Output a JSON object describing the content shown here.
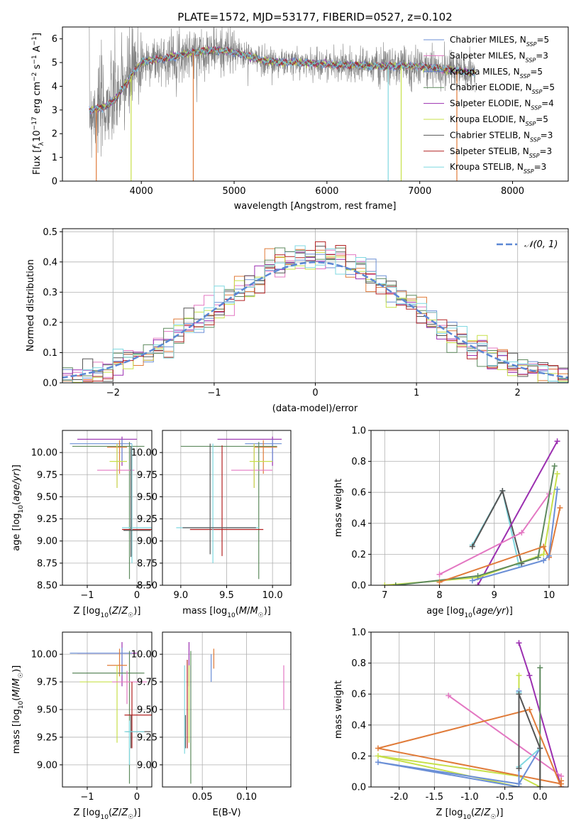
{
  "chart_data": [
    {
      "type": "line",
      "title": "PLATE=1572, MJD=53177, FIBERID=0527, z=0.102",
      "xlabel": "wavelength [Angstrom, rest frame]",
      "ylabel": "Flux [f_λ 10^-17 erg cm^-2 s^-1 A^-1]",
      "xlim": [
        3150,
        8600
      ],
      "ylim": [
        0,
        6.5
      ],
      "xticks": [
        4000,
        5000,
        6000,
        7000,
        8000
      ],
      "yticks": [
        0,
        1,
        2,
        3,
        4,
        5,
        6
      ],
      "legend_position": "top-right",
      "series": [
        {
          "name": "Chabrier MILES, N_SSP=5",
          "color": "#6b8fd6"
        },
        {
          "name": "Salpeter MILES, N_SSP=3",
          "color": "#e377c2"
        },
        {
          "name": "Kroupa MILES, N_SSP=5",
          "color": "#5b7fcf"
        },
        {
          "name": "Chabrier ELODIE, N_SSP=5",
          "color": "#5e8a5e"
        },
        {
          "name": "Salpeter ELODIE, N_SSP=4",
          "color": "#9b2fb0"
        },
        {
          "name": "Kroupa ELODIE, N_SSP=5",
          "color": "#c7e04a"
        },
        {
          "name": "Chabrier STELIB, N_SSP=3",
          "color": "#555555"
        },
        {
          "name": "Salpeter STELIB, N_SSP=3",
          "color": "#b22222"
        },
        {
          "name": "Kroupa STELIB, N_SSP=3",
          "color": "#7fd8e0"
        }
      ],
      "continuum": {
        "x": [
          3450,
          3600,
          3700,
          3800,
          3900,
          4000,
          4100,
          4300,
          4500,
          4700,
          4900,
          5100,
          5300,
          5500,
          5700,
          5900,
          6100,
          6300,
          6500,
          6700,
          6900,
          7100,
          7300,
          7500,
          7600
        ],
        "y": [
          3.0,
          3.1,
          3.4,
          3.9,
          4.5,
          5.0,
          5.1,
          5.2,
          5.4,
          5.5,
          5.5,
          5.35,
          5.1,
          5.0,
          5.0,
          4.95,
          4.9,
          4.9,
          4.85,
          4.85,
          4.85,
          4.8,
          4.7,
          4.6,
          4.55
        ]
      },
      "dropouts": [
        {
          "x": 3515,
          "color": "#e07b39"
        },
        {
          "x": 3890,
          "color": "#c7e04a"
        },
        {
          "x": 4560,
          "color": "#e07b39"
        },
        {
          "x": 6660,
          "color": "#7fd8e0"
        },
        {
          "x": 6800,
          "color": "#c7e04a"
        },
        {
          "x": 7400,
          "color": "#e07b39"
        }
      ]
    },
    {
      "type": "histogram",
      "xlabel": "(data-model)/error",
      "ylabel": "Normed distribution",
      "xlim": [
        -2.5,
        2.5
      ],
      "ylim": [
        0,
        0.51
      ],
      "xticks": [
        -2,
        -1,
        0,
        1,
        2
      ],
      "yticks": [
        0.0,
        0.1,
        0.2,
        0.3,
        0.4,
        0.5
      ],
      "legend": "𝒩(0, 1)",
      "legend_position": "top-right",
      "bin_width": 0.1,
      "reference_curve": {
        "name": "𝒩(0, 1)",
        "color": "#5b87d4",
        "mean": 0,
        "sigma": 1
      },
      "series_colors": [
        "#6b8fd6",
        "#e377c2",
        "#e07b39",
        "#5e8a5e",
        "#9b2fb0",
        "#c7e04a",
        "#555555",
        "#b22222",
        "#7fd8e0"
      ]
    },
    {
      "type": "errorbar",
      "xlabel": "Z [log10(Z/Z☉)]",
      "ylabel": "age  [log10(age/yr)]",
      "xlim": [
        -1.5,
        0.3
      ],
      "ylim": [
        8.5,
        10.25
      ],
      "xticks": [
        -1,
        0
      ],
      "yticks": [
        8.5,
        8.75,
        9.0,
        9.25,
        9.5,
        9.75,
        10.0
      ],
      "points": [
        {
          "x": -0.3,
          "y": 10.15,
          "xerr": [
            0.9,
            0.3
          ],
          "yerr": [
            0.3,
            0.03
          ],
          "color": "#9b2fb0"
        },
        {
          "x": -0.3,
          "y": 10.1,
          "xerr": [
            1.05,
            0.2
          ],
          "yerr": [
            0.2,
            0.05
          ],
          "color": "#6b8fd6"
        },
        {
          "x": -0.35,
          "y": 10.06,
          "xerr": [
            0.25,
            0.15
          ],
          "yerr": [
            0.3,
            0.08
          ],
          "color": "#e07b39"
        },
        {
          "x": -0.15,
          "y": 10.07,
          "xerr": [
            1.15,
            0.3
          ],
          "yerr": [
            1.5,
            0.05
          ],
          "color": "#5e8a5e"
        },
        {
          "x": -0.4,
          "y": 9.8,
          "xerr": [
            0.4,
            0.35
          ],
          "yerr": [
            0.2,
            0.3
          ],
          "color": "#e377c2"
        },
        {
          "x": -0.4,
          "y": 9.9,
          "xerr": [
            0.15,
            0.2
          ],
          "yerr": [
            0.3,
            0.2
          ],
          "color": "#c7e04a"
        },
        {
          "x": -0.1,
          "y": 9.13,
          "xerr": [
            0.2,
            0.4
          ],
          "yerr": [
            0.3,
            0.95
          ],
          "color": "#b22222"
        },
        {
          "x": -0.1,
          "y": 9.15,
          "xerr": [
            0.2,
            0.4
          ],
          "yerr": [
            0.4,
            0.95
          ],
          "color": "#7fd8e0"
        },
        {
          "x": -0.12,
          "y": 9.12,
          "xerr": [
            0.15,
            0.4
          ],
          "yerr": [
            0.3,
            0.95
          ],
          "color": "#555555"
        }
      ]
    },
    {
      "type": "errorbar",
      "xlabel": "mass [log10(M/M☉)]",
      "xlim": [
        8.8,
        10.2
      ],
      "ylim": [
        8.5,
        10.25
      ],
      "xticks": [
        9.0,
        9.5,
        10.0
      ],
      "yticks": [
        8.5,
        8.75,
        9.0,
        9.25,
        9.5,
        9.75,
        10.0
      ],
      "points": [
        {
          "x": 10.0,
          "y": 10.15,
          "xerr": [
            0.6,
            0.1
          ],
          "yerr": [
            0.3,
            0.03
          ],
          "color": "#9b2fb0"
        },
        {
          "x": 10.0,
          "y": 10.1,
          "xerr": [
            0.3,
            0.1
          ],
          "yerr": [
            0.2,
            0.05
          ],
          "color": "#6b8fd6"
        },
        {
          "x": 9.9,
          "y": 10.06,
          "xerr": [
            0.1,
            0.15
          ],
          "yerr": [
            0.3,
            0.08
          ],
          "color": "#e07b39"
        },
        {
          "x": 9.85,
          "y": 10.07,
          "xerr": [
            0.85,
            0.2
          ],
          "yerr": [
            1.5,
            0.05
          ],
          "color": "#5e8a5e"
        },
        {
          "x": 9.8,
          "y": 9.8,
          "xerr": [
            0.25,
            0.2
          ],
          "yerr": [
            0.2,
            0.3
          ],
          "color": "#e377c2"
        },
        {
          "x": 9.8,
          "y": 9.9,
          "xerr": [
            0.05,
            0.2
          ],
          "yerr": [
            0.3,
            0.2
          ],
          "color": "#c7e04a"
        },
        {
          "x": 9.45,
          "y": 9.13,
          "xerr": [
            0.35,
            0.45
          ],
          "yerr": [
            0.3,
            0.95
          ],
          "color": "#b22222"
        },
        {
          "x": 9.35,
          "y": 9.15,
          "xerr": [
            0.4,
            0.5
          ],
          "yerr": [
            0.4,
            0.95
          ],
          "color": "#7fd8e0"
        },
        {
          "x": 9.32,
          "y": 9.15,
          "xerr": [
            0.3,
            0.5
          ],
          "yerr": [
            0.3,
            0.95
          ],
          "color": "#555555"
        }
      ]
    },
    {
      "type": "line",
      "xlabel": "age  [log10(age/yr)]",
      "ylabel": "mass weight",
      "xlim": [
        6.75,
        10.35
      ],
      "ylim": [
        0,
        1.0
      ],
      "xticks": [
        7,
        8,
        9,
        10
      ],
      "yticks": [
        0.0,
        0.2,
        0.4,
        0.6,
        0.8,
        1.0
      ],
      "series": [
        {
          "color": "#7fd8e0",
          "x": [
            8.6,
            9.15,
            9.45
          ],
          "y": [
            0.26,
            0.61,
            0.13
          ]
        },
        {
          "color": "#555555",
          "x": [
            8.6,
            9.15,
            9.5
          ],
          "y": [
            0.25,
            0.61,
            0.14
          ]
        },
        {
          "color": "#9b2fb0",
          "x": [
            8.7,
            10.15
          ],
          "y": [
            0.0,
            0.93
          ]
        },
        {
          "color": "#c7e04a",
          "x": [
            7.0,
            8.7,
            9.9,
            10.15
          ],
          "y": [
            0.0,
            0.05,
            0.2,
            0.72
          ]
        },
        {
          "color": "#e377c2",
          "x": [
            8.0,
            9.5,
            10.0
          ],
          "y": [
            0.07,
            0.34,
            0.59
          ]
        },
        {
          "color": "#5e8a5e",
          "x": [
            7.2,
            8.7,
            9.8,
            10.1
          ],
          "y": [
            0.0,
            0.06,
            0.18,
            0.77
          ]
        },
        {
          "color": "#e07b39",
          "x": [
            8.0,
            9.9,
            10.0,
            10.2
          ],
          "y": [
            0.02,
            0.25,
            0.18,
            0.5
          ]
        },
        {
          "color": "#6b8fd6",
          "x": [
            8.6,
            9.9,
            10.0,
            10.15
          ],
          "y": [
            0.03,
            0.16,
            0.19,
            0.62
          ]
        }
      ]
    },
    {
      "type": "errorbar",
      "xlabel": "Z [log10(Z/Z☉)]",
      "ylabel": "mass [log10(M/M☉)]",
      "xlim": [
        -1.5,
        0.3
      ],
      "ylim": [
        8.8,
        10.2
      ],
      "xticks": [
        -1,
        0
      ],
      "yticks": [
        9.0,
        9.25,
        9.5,
        9.75,
        10.0
      ],
      "points": [
        {
          "x": -0.3,
          "y": 10.01,
          "xerr": [
            0.9,
            0.3
          ],
          "yerr": [
            0.3,
            0.1
          ],
          "color": "#9b2fb0"
        },
        {
          "x": -0.3,
          "y": 10.01,
          "xerr": [
            1.05,
            0.2
          ],
          "yerr": [
            0.2,
            0.05
          ],
          "color": "#6b8fd6"
        },
        {
          "x": -0.35,
          "y": 9.9,
          "xerr": [
            0.25,
            0.15
          ],
          "yerr": [
            0.1,
            0.15
          ],
          "color": "#e07b39"
        },
        {
          "x": -0.15,
          "y": 9.83,
          "xerr": [
            1.15,
            0.3
          ],
          "yerr": [
            1.0,
            0.2
          ],
          "color": "#5e8a5e"
        },
        {
          "x": -0.4,
          "y": 9.75,
          "xerr": [
            0.75,
            0.35
          ],
          "yerr": [
            0.55,
            0.15
          ],
          "color": "#c7e04a"
        },
        {
          "x": -0.2,
          "y": 9.75,
          "xerr": [
            0.3,
            0.4
          ],
          "yerr": [
            0.2,
            0.1
          ],
          "color": "#e377c2"
        },
        {
          "x": -0.1,
          "y": 9.45,
          "xerr": [
            0.15,
            0.4
          ],
          "yerr": [
            0.3,
            0.3
          ],
          "color": "#b22222"
        },
        {
          "x": -0.12,
          "y": 9.3,
          "xerr": [
            0.1,
            0.4
          ],
          "yerr": [
            0.15,
            0.15
          ],
          "color": "#555555"
        },
        {
          "x": -0.15,
          "y": 9.3,
          "xerr": [
            0.1,
            0.3
          ],
          "yerr": [
            0.3,
            0.1
          ],
          "color": "#7fd8e0"
        }
      ]
    },
    {
      "type": "errorbar",
      "xlabel": "E(B-V)",
      "xlim": [
        0.005,
        0.15
      ],
      "ylim": [
        8.8,
        10.2
      ],
      "xticks": [
        0.05,
        0.1
      ],
      "xtick_labels": [
        "0.05",
        "0.10"
      ],
      "yticks": [
        9.0,
        9.25,
        9.5,
        9.75,
        10.0
      ],
      "points": [
        {
          "x": 0.035,
          "y": 10.01,
          "yerr": [
            0.3,
            0.1
          ],
          "color": "#9b2fb0"
        },
        {
          "x": 0.06,
          "y": 9.9,
          "yerr": [
            0.15,
            0.1
          ],
          "color": "#6b8fd6"
        },
        {
          "x": 0.063,
          "y": 9.97,
          "yerr": [
            0.1,
            0.08
          ],
          "color": "#e07b39"
        },
        {
          "x": 0.037,
          "y": 9.83,
          "yerr": [
            1.0,
            0.2
          ],
          "color": "#5e8a5e"
        },
        {
          "x": 0.035,
          "y": 9.75,
          "yerr": [
            0.55,
            0.15
          ],
          "color": "#c7e04a"
        },
        {
          "x": 0.142,
          "y": 9.75,
          "yerr": [
            0.25,
            0.15
          ],
          "color": "#e377c2"
        },
        {
          "x": 0.033,
          "y": 9.45,
          "yerr": [
            0.3,
            0.5
          ],
          "color": "#b22222"
        },
        {
          "x": 0.031,
          "y": 9.3,
          "yerr": [
            0.15,
            0.15
          ],
          "color": "#555555"
        },
        {
          "x": 0.03,
          "y": 9.5,
          "yerr": [
            0.4,
            0.4
          ],
          "color": "#7fd8e0"
        }
      ]
    },
    {
      "type": "line",
      "xlabel": "Z [log10(Z/Z☉)]",
      "ylabel": "mass weight",
      "xlim": [
        -2.4,
        0.4
      ],
      "ylim": [
        0,
        1.0
      ],
      "xticks": [
        -2.0,
        -1.5,
        -1.0,
        -0.5,
        0.0
      ],
      "yticks": [
        0.0,
        0.2,
        0.4,
        0.6,
        0.8,
        1.0
      ],
      "series": [
        {
          "color": "#9b2fb0",
          "x": [
            -0.3,
            -0.15,
            0.3
          ],
          "y": [
            0.93,
            0.72,
            0.0
          ]
        },
        {
          "color": "#5e8a5e",
          "x": [
            0.0,
            0.0
          ],
          "y": [
            0.0,
            0.77
          ]
        },
        {
          "color": "#c7e04a",
          "x": [
            -0.3,
            -0.3,
            -2.3,
            -0.3,
            0.0
          ],
          "y": [
            0.72,
            0.0,
            0.2,
            0.07,
            0.0
          ]
        },
        {
          "color": "#e377c2",
          "x": [
            -1.3,
            0.3
          ],
          "y": [
            0.59,
            0.07
          ]
        },
        {
          "color": "#e07b39",
          "x": [
            0.3,
            -2.3,
            -0.15,
            0.3,
            0.3
          ],
          "y": [
            0.02,
            0.25,
            0.5,
            0.0,
            0.04
          ]
        },
        {
          "color": "#6b8fd6",
          "x": [
            -0.3,
            -0.3,
            -2.3,
            -0.3,
            0.0
          ],
          "y": [
            0.62,
            0.0,
            0.16,
            0.02,
            0.25
          ]
        },
        {
          "color": "#7fd8e0",
          "x": [
            -0.3,
            -0.3,
            0.0
          ],
          "y": [
            0.61,
            0.13,
            0.25
          ]
        },
        {
          "color": "#555555",
          "x": [
            -0.3,
            -0.3,
            0.0,
            0.0
          ],
          "y": [
            0.12,
            0.6,
            0.25,
            0.0
          ]
        }
      ]
    }
  ]
}
